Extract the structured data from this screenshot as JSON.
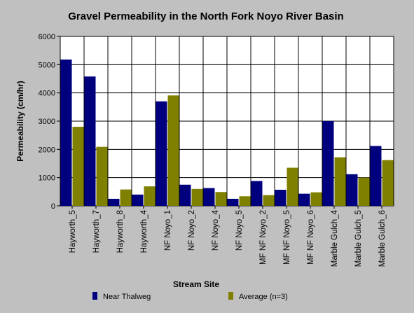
{
  "chart_data": {
    "type": "bar",
    "title": "Gravel Permeability in the North Fork Noyo River Basin",
    "xlabel": "Stream Site",
    "ylabel": "Permeability (cm/hr)",
    "ylim": [
      0,
      6000
    ],
    "yticks": [
      "0",
      "1000",
      "2000",
      "3000",
      "4000",
      "5000",
      "6000"
    ],
    "grid": true,
    "legend_position": "bottom",
    "categories": [
      "Hayworth_5",
      "Hayworth_7",
      "Hayworth_8",
      "Hayworth_4",
      "NF Noyo_1",
      "NF Noyo_2",
      "NF Noyo_4",
      "NF Noyo_5",
      "MF NF Noyo_2",
      "MF NF Noyo_5",
      "MF NF Noyo_6",
      "Marble Gulch_4",
      "Marble Gulch_5",
      "Marble Gulch_6"
    ],
    "series": [
      {
        "name": "Near Thalweg",
        "color": "#00007f",
        "values": [
          5180,
          4580,
          250,
          400,
          3700,
          750,
          630,
          250,
          880,
          570,
          430,
          3000,
          1120,
          2120
        ]
      },
      {
        "name": "Average (n=3)",
        "color": "#7f7f00",
        "values": [
          2800,
          2090,
          580,
          690,
          3910,
          600,
          490,
          340,
          380,
          1350,
          480,
          1720,
          1000,
          1620
        ]
      }
    ]
  }
}
